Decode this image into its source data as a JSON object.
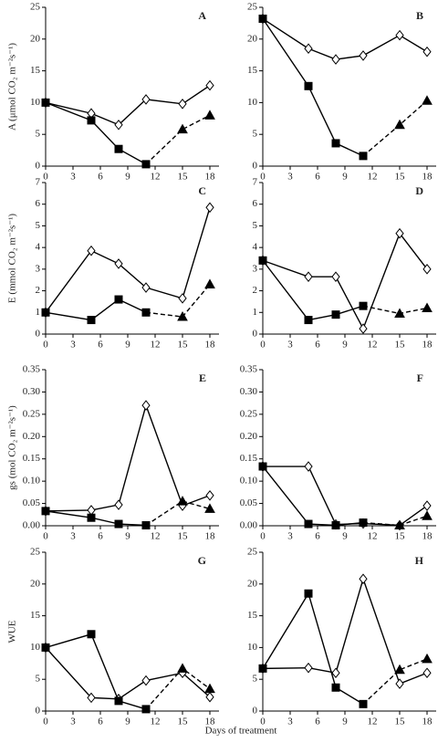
{
  "chart_data": [
    {
      "type": "line",
      "title": "A",
      "ylabel": "A (μmol CO₂ m⁻²s⁻¹)",
      "xlim": [
        0,
        19
      ],
      "xticks": [
        0,
        3,
        6,
        9,
        12,
        15,
        18
      ],
      "ylim": [
        0,
        25
      ],
      "yticks": [
        0,
        5,
        10,
        15,
        20,
        25
      ],
      "series": [
        {
          "color": "#000000",
          "marker": "diamond",
          "x": [
            0,
            5,
            8,
            11,
            15,
            18
          ],
          "values": [
            10,
            8.3,
            6.5,
            10.5,
            9.8,
            12.7
          ]
        },
        {
          "color": "#000000",
          "marker": "square",
          "x": [
            0,
            5,
            8,
            11
          ],
          "values": [
            10,
            7.2,
            2.7,
            0.3
          ]
        },
        {
          "color": "#000000",
          "marker": "triangle",
          "dashed": true,
          "x": [
            15,
            18
          ],
          "values": [
            5.8,
            8
          ]
        }
      ]
    },
    {
      "type": "line",
      "title": "B",
      "xlim": [
        0,
        19
      ],
      "xticks": [
        0,
        3,
        6,
        9,
        12,
        15,
        18
      ],
      "ylim": [
        0,
        25
      ],
      "yticks": [
        0,
        5,
        10,
        15,
        20,
        25
      ],
      "series": [
        {
          "color": "#000000",
          "marker": "diamond",
          "x": [
            0,
            5,
            8,
            11,
            15,
            18
          ],
          "values": [
            23.2,
            18.5,
            16.8,
            17.4,
            20.6,
            18
          ]
        },
        {
          "color": "#000000",
          "marker": "square",
          "x": [
            0,
            5,
            8,
            11
          ],
          "values": [
            23.2,
            12.6,
            3.6,
            1.6
          ]
        },
        {
          "color": "#000000",
          "marker": "triangle",
          "dashed": true,
          "x": [
            15,
            18
          ],
          "values": [
            6.5,
            10.3
          ]
        }
      ]
    },
    {
      "type": "line",
      "title": "C",
      "ylabel": "E (mmol CO₂ m⁻²s⁻¹)",
      "xlim": [
        0,
        19
      ],
      "xticks": [
        0,
        3,
        6,
        9,
        12,
        15,
        18
      ],
      "ylim": [
        0,
        7
      ],
      "yticks": [
        0,
        1,
        2,
        3,
        4,
        5,
        6,
        7
      ],
      "series": [
        {
          "color": "#000000",
          "marker": "diamond",
          "x": [
            0,
            5,
            8,
            11,
            15,
            18
          ],
          "values": [
            1,
            3.85,
            3.25,
            2.15,
            1.65,
            5.85
          ]
        },
        {
          "color": "#000000",
          "marker": "square",
          "x": [
            0,
            5,
            8,
            11
          ],
          "values": [
            1,
            0.65,
            1.6,
            1
          ]
        },
        {
          "color": "#000000",
          "marker": "triangle",
          "dashed": true,
          "x": [
            15,
            18
          ],
          "values": [
            0.8,
            2.3
          ]
        }
      ]
    },
    {
      "type": "line",
      "title": "D",
      "xlim": [
        0,
        19
      ],
      "xticks": [
        0,
        3,
        6,
        9,
        12,
        15,
        18
      ],
      "ylim": [
        0,
        7
      ],
      "yticks": [
        0,
        1,
        2,
        3,
        4,
        5,
        6,
        7
      ],
      "series": [
        {
          "color": "#000000",
          "marker": "diamond",
          "x": [
            0,
            5,
            8,
            11,
            15,
            18
          ],
          "values": [
            3.4,
            2.65,
            2.65,
            0.25,
            4.65,
            3
          ]
        },
        {
          "color": "#000000",
          "marker": "square",
          "x": [
            0,
            5,
            8,
            11
          ],
          "values": [
            3.4,
            0.65,
            0.9,
            1.3
          ]
        },
        {
          "color": "#000000",
          "marker": "triangle",
          "dashed": true,
          "x": [
            15,
            18
          ],
          "values": [
            0.95,
            1.2
          ]
        }
      ]
    },
    {
      "type": "line",
      "title": "E",
      "ylabel": "gs (mol CO₂ m⁻²s⁻¹)",
      "xlim": [
        0,
        19
      ],
      "xticks": [
        0,
        3,
        6,
        9,
        12,
        15,
        18
      ],
      "ylim": [
        0,
        0.35
      ],
      "yticks": [
        {
          "value": 0,
          "label": "0.00"
        },
        0.05,
        {
          "value": 0.1,
          "label": "0.10"
        },
        0.15,
        {
          "value": 0.2,
          "label": "0.20"
        },
        0.25,
        {
          "value": 0.3,
          "label": "0.30"
        },
        0.35
      ],
      "series": [
        {
          "color": "#000000",
          "marker": "diamond",
          "x": [
            0,
            5,
            8,
            11,
            15,
            18
          ],
          "values": [
            0.033,
            0.035,
            0.047,
            0.27,
            0.045,
            0.068
          ]
        },
        {
          "color": "#000000",
          "marker": "square",
          "x": [
            0,
            5,
            8,
            11
          ],
          "values": [
            0.033,
            0.018,
            0.004,
            0.001
          ]
        },
        {
          "color": "#000000",
          "marker": "triangle",
          "dashed": true,
          "x": [
            15,
            18
          ],
          "values": [
            0.055,
            0.038
          ]
        }
      ]
    },
    {
      "type": "line",
      "title": "F",
      "xlim": [
        0,
        19
      ],
      "xticks": [
        0,
        3,
        6,
        9,
        12,
        15,
        18
      ],
      "ylim": [
        0,
        0.35
      ],
      "yticks": [
        {
          "value": 0,
          "label": "0.00"
        },
        0.05,
        {
          "value": 0.1,
          "label": "0.10"
        },
        0.15,
        {
          "value": 0.2,
          "label": "0.20"
        },
        0.25,
        {
          "value": 0.3,
          "label": "0.30"
        },
        0.35
      ],
      "series": [
        {
          "color": "#000000",
          "marker": "diamond",
          "x": [
            0,
            5,
            8,
            11,
            15,
            18
          ],
          "values": [
            0.133,
            0.133,
            0.003,
            0.005,
            0.001,
            0.045
          ]
        },
        {
          "color": "#000000",
          "marker": "square",
          "x": [
            0,
            5,
            8,
            11
          ],
          "values": [
            0.133,
            0.004,
            0.001,
            0.007
          ]
        },
        {
          "color": "#000000",
          "marker": "triangle",
          "dashed": true,
          "x": [
            15,
            18
          ],
          "values": [
            0.001,
            0.022
          ]
        }
      ]
    },
    {
      "type": "line",
      "title": "G",
      "ylabel": "WUE",
      "xlabel": "Days of treatment",
      "xlim": [
        0,
        19
      ],
      "xticks": [
        0,
        3,
        6,
        9,
        12,
        15,
        18
      ],
      "ylim": [
        0,
        25
      ],
      "yticks": [
        0,
        5,
        10,
        15,
        20,
        25
      ],
      "series": [
        {
          "color": "#000000",
          "marker": "diamond",
          "x": [
            0,
            5,
            8,
            11,
            15,
            18
          ],
          "values": [
            10,
            2.1,
            1.9,
            4.8,
            6,
            2.2
          ]
        },
        {
          "color": "#000000",
          "marker": "square",
          "x": [
            0,
            5,
            8,
            11
          ],
          "values": [
            10,
            12.1,
            1.6,
            0.3
          ]
        },
        {
          "color": "#000000",
          "marker": "triangle",
          "dashed": true,
          "x": [
            15,
            18
          ],
          "values": [
            6.7,
            3.5
          ]
        }
      ]
    },
    {
      "type": "line",
      "title": "H",
      "xlim": [
        0,
        19
      ],
      "xticks": [
        0,
        3,
        6,
        9,
        12,
        15,
        18
      ],
      "ylim": [
        0,
        25
      ],
      "yticks": [
        0,
        5,
        10,
        15,
        20,
        25
      ],
      "series": [
        {
          "color": "#000000",
          "marker": "diamond",
          "x": [
            0,
            5,
            8,
            11,
            15,
            18
          ],
          "values": [
            6.7,
            6.8,
            6,
            20.8,
            4.3,
            6
          ]
        },
        {
          "color": "#000000",
          "marker": "square",
          "x": [
            0,
            5,
            8,
            11
          ],
          "values": [
            6.7,
            18.5,
            3.7,
            1.1
          ]
        },
        {
          "color": "#000000",
          "marker": "triangle",
          "dashed": true,
          "x": [
            15,
            18
          ],
          "values": [
            6.5,
            8.2
          ]
        }
      ]
    }
  ]
}
